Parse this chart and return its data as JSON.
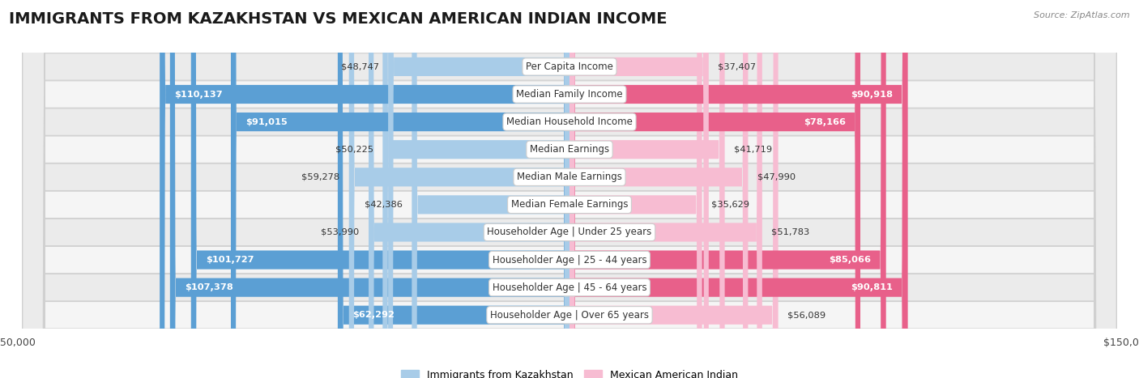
{
  "title": "IMMIGRANTS FROM KAZAKHSTAN VS MEXICAN AMERICAN INDIAN INCOME",
  "source": "Source: ZipAtlas.com",
  "categories": [
    "Per Capita Income",
    "Median Family Income",
    "Median Household Income",
    "Median Earnings",
    "Median Male Earnings",
    "Median Female Earnings",
    "Householder Age | Under 25 years",
    "Householder Age | 25 - 44 years",
    "Householder Age | 45 - 64 years",
    "Householder Age | Over 65 years"
  ],
  "kazakhstan_values": [
    48747,
    110137,
    91015,
    50225,
    59278,
    42386,
    53990,
    101727,
    107378,
    62292
  ],
  "mexican_values": [
    37407,
    90918,
    78166,
    41719,
    47990,
    35629,
    51783,
    85066,
    90811,
    56089
  ],
  "kaz_light": "#a8cce8",
  "kaz_dark": "#5b9fd4",
  "mex_light": "#f7bcd2",
  "mex_dark": "#e8608a",
  "max_value": 150000,
  "legend_kazakhstan": "Immigrants from Kazakhstan",
  "legend_mexican": "Mexican American Indian",
  "title_fontsize": 14,
  "label_fontsize": 8.5,
  "value_fontsize": 8.2,
  "inside_threshold": 60000
}
